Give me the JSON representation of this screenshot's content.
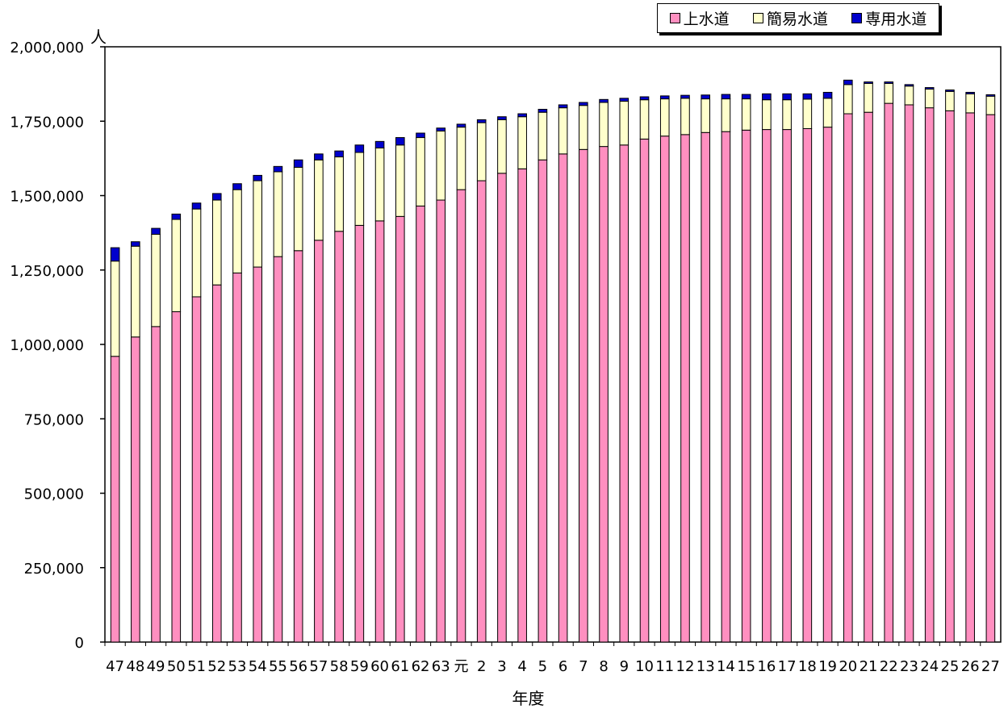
{
  "chart_data": {
    "type": "bar",
    "stacked": true,
    "title": "",
    "xlabel": "年度",
    "ylabel": "人",
    "ylim": [
      0,
      2000000
    ],
    "yticks": [
      0,
      250000,
      500000,
      750000,
      1000000,
      1250000,
      1500000,
      1750000,
      2000000
    ],
    "ytick_labels": [
      "0",
      "250,000",
      "500,000",
      "750,000",
      "1,000,000",
      "1,250,000",
      "1,500,000",
      "1,750,000",
      "2,000,000"
    ],
    "grid": false,
    "legend_position": "top-right",
    "categories": [
      "47",
      "48",
      "49",
      "50",
      "51",
      "52",
      "53",
      "54",
      "55",
      "56",
      "57",
      "58",
      "59",
      "60",
      "61",
      "62",
      "63",
      "元",
      "2",
      "3",
      "4",
      "5",
      "6",
      "7",
      "8",
      "9",
      "10",
      "11",
      "12",
      "13",
      "14",
      "15",
      "16",
      "17",
      "18",
      "19",
      "20",
      "21",
      "22",
      "23",
      "24",
      "25",
      "26",
      "27"
    ],
    "series": [
      {
        "name": "上水道",
        "color": "#FF8FC0",
        "values": [
          960000,
          1025000,
          1060000,
          1110000,
          1160000,
          1200000,
          1240000,
          1260000,
          1295000,
          1315000,
          1350000,
          1380000,
          1400000,
          1415000,
          1430000,
          1465000,
          1485000,
          1520000,
          1550000,
          1575000,
          1590000,
          1620000,
          1640000,
          1655000,
          1665000,
          1670000,
          1690000,
          1700000,
          1705000,
          1712000,
          1715000,
          1720000,
          1722000,
          1722000,
          1725000,
          1730000,
          1775000,
          1780000,
          1810000,
          1805000,
          1795000,
          1785000,
          1778000,
          1772000
        ]
      },
      {
        "name": "簡易水道",
        "color": "#FFFFCC",
        "values": [
          320000,
          305000,
          310000,
          310000,
          295000,
          285000,
          280000,
          290000,
          285000,
          280000,
          270000,
          250000,
          245000,
          245000,
          240000,
          230000,
          232000,
          210000,
          195000,
          180000,
          175000,
          160000,
          155000,
          148000,
          148000,
          147000,
          132000,
          125000,
          122000,
          113000,
          110000,
          105000,
          100000,
          100000,
          99000,
          97000,
          98000,
          97000,
          67000,
          63000,
          63000,
          65000,
          64000,
          62000
        ]
      },
      {
        "name": "専用水道",
        "color": "#0000CC",
        "values": [
          45000,
          15000,
          20000,
          18000,
          20000,
          22000,
          20000,
          18000,
          18000,
          25000,
          20000,
          20000,
          25000,
          22000,
          25000,
          15000,
          10000,
          10000,
          10000,
          10000,
          10000,
          10000,
          10000,
          10000,
          10000,
          10000,
          10000,
          10000,
          10000,
          13000,
          15000,
          15000,
          20000,
          20000,
          18000,
          20000,
          15000,
          5000,
          5000,
          5000,
          5000,
          5000,
          5000,
          5000
        ]
      }
    ]
  }
}
